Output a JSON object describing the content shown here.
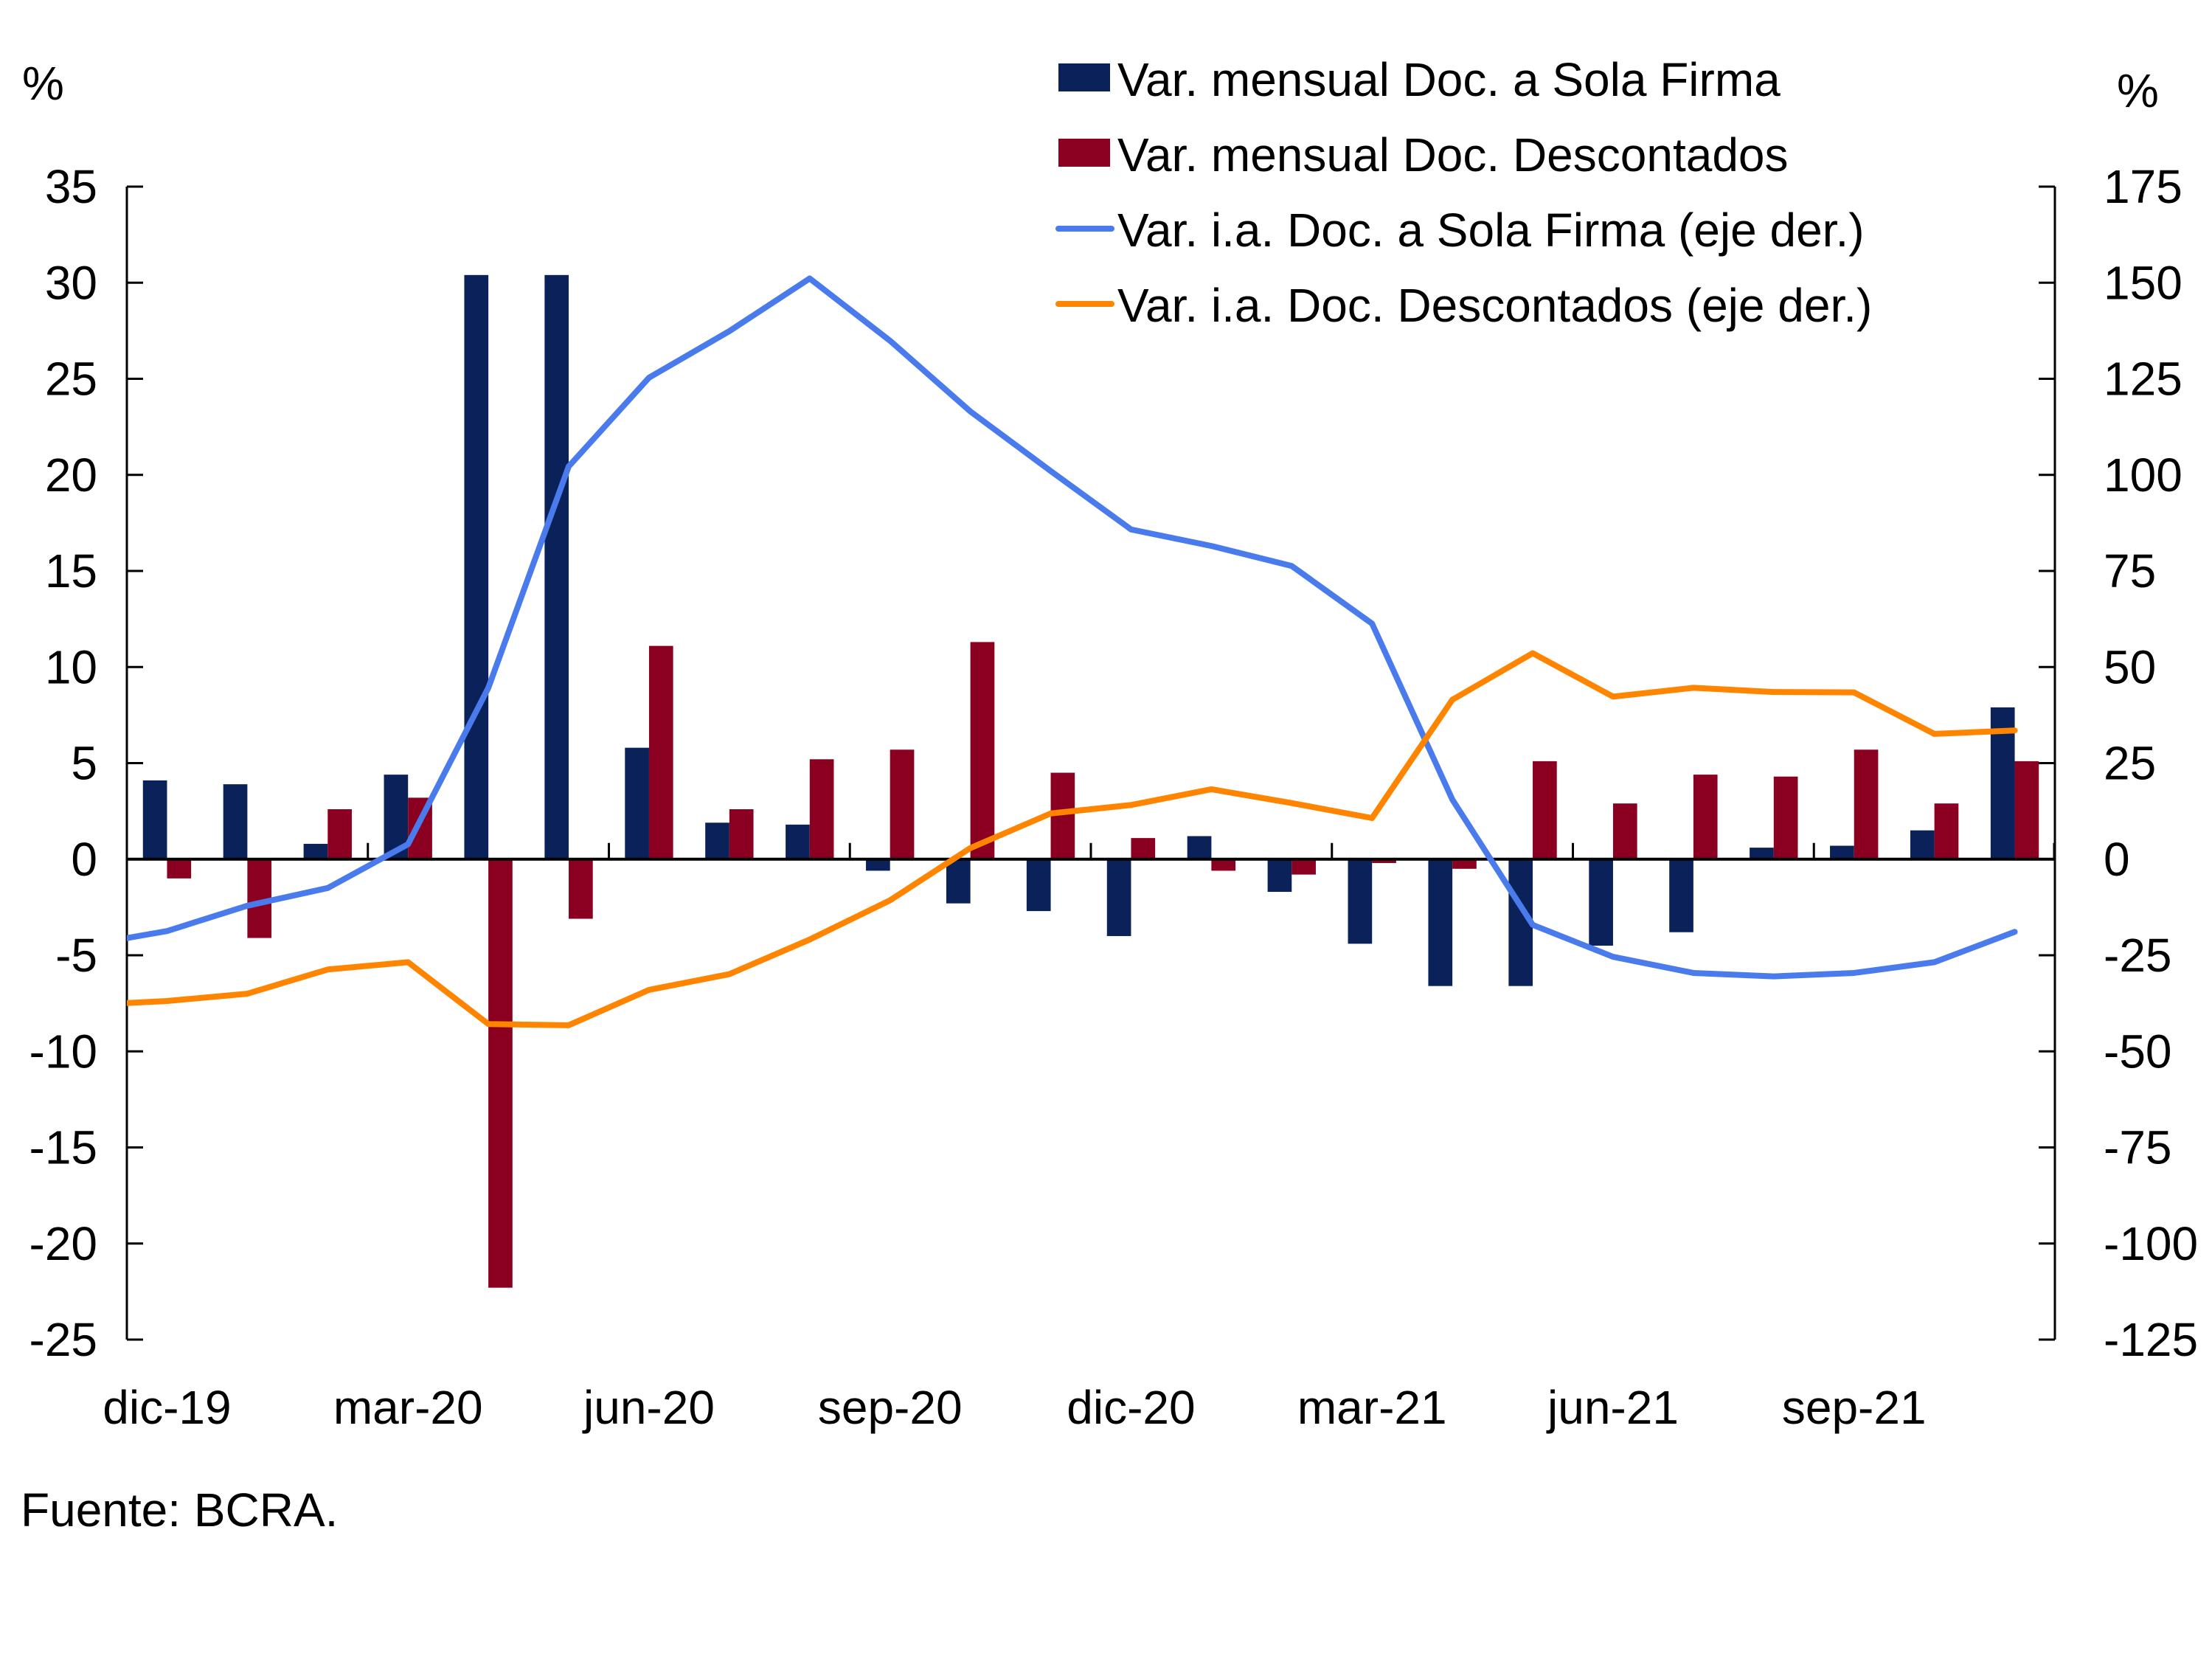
{
  "chart_data": {
    "type": "bar",
    "title": "",
    "left_axis": {
      "label": "%",
      "range": [
        -25,
        35
      ],
      "ticks": [
        35,
        30,
        25,
        20,
        15,
        10,
        5,
        0,
        -5,
        -10,
        -15,
        -20,
        -25
      ]
    },
    "right_axis": {
      "label": "%",
      "range": [
        -125,
        175
      ],
      "ticks": [
        175,
        150,
        125,
        100,
        75,
        50,
        25,
        0,
        -25,
        -50,
        -75,
        -100,
        -125
      ]
    },
    "categories": [
      "dic-19",
      "ene-20",
      "feb-20",
      "mar-20",
      "abr-20",
      "may-20",
      "jun-20",
      "jul-20",
      "ago-20",
      "sep-20",
      "oct-20",
      "nov-20",
      "dic-20",
      "ene-21",
      "feb-21",
      "mar-21",
      "abr-21",
      "may-21",
      "jun-21",
      "jul-21",
      "ago-21",
      "sep-21",
      "oct-21",
      "nov-21"
    ],
    "x_tick_labels": [
      "dic-19",
      "mar-20",
      "jun-20",
      "sep-20",
      "dic-20",
      "mar-21",
      "jun-21",
      "sep-21"
    ],
    "x_tick_label_indices": [
      0,
      3,
      6,
      9,
      12,
      15,
      18,
      21
    ],
    "series": [
      {
        "name": "Var. mensual Doc. a Sola Firma",
        "type": "bar",
        "axis": "left",
        "color": "#0b2159",
        "values": [
          4.1,
          3.9,
          0.8,
          4.4,
          30.4,
          30.4,
          5.8,
          1.9,
          1.8,
          -0.6,
          -2.3,
          -2.7,
          -4.0,
          1.2,
          -1.7,
          -4.4,
          -6.6,
          -6.6,
          -4.5,
          -3.8,
          0.6,
          0.7,
          1.5,
          7.9
        ]
      },
      {
        "name": "Var. mensual Doc. Descontados",
        "type": "bar",
        "axis": "left",
        "color": "#8b0020",
        "values": [
          -1.0,
          -4.1,
          2.6,
          3.2,
          -22.3,
          -3.1,
          11.1,
          2.6,
          5.2,
          5.7,
          11.3,
          4.5,
          1.1,
          -0.6,
          -0.8,
          -0.2,
          -0.5,
          5.1,
          2.9,
          4.4,
          4.3,
          5.7,
          2.9,
          5.1
        ]
      },
      {
        "name": "Var. i.a. Doc. a Sola Firma (eje der.)",
        "type": "line",
        "axis": "right",
        "color": "#4a7bec",
        "values": [
          -18.7,
          -12.1,
          -7.5,
          3.9,
          44.6,
          102.2,
          125.3,
          137.4,
          151.1,
          134.9,
          116.5,
          101.0,
          85.8,
          81.5,
          76.3,
          61.3,
          15.5,
          -17.1,
          -25.4,
          -29.6,
          -30.5,
          -29.6,
          -26.8,
          -18.9
        ]
      },
      {
        "name": "Var. i.a. Doc. Descontados (eje der.)",
        "type": "line",
        "axis": "right",
        "color": "#ff8500",
        "values": [
          -36.9,
          -35.0,
          -28.7,
          -26.8,
          -42.9,
          -43.2,
          -34.0,
          -29.9,
          -20.9,
          -10.7,
          2.9,
          11.9,
          14.1,
          18.2,
          14.6,
          10.7,
          41.5,
          53.6,
          42.3,
          44.6,
          43.5,
          43.4,
          32.6,
          33.5
        ]
      }
    ],
    "legend_position": "top-right",
    "grid": false,
    "source": "Fuente: BCRA."
  }
}
